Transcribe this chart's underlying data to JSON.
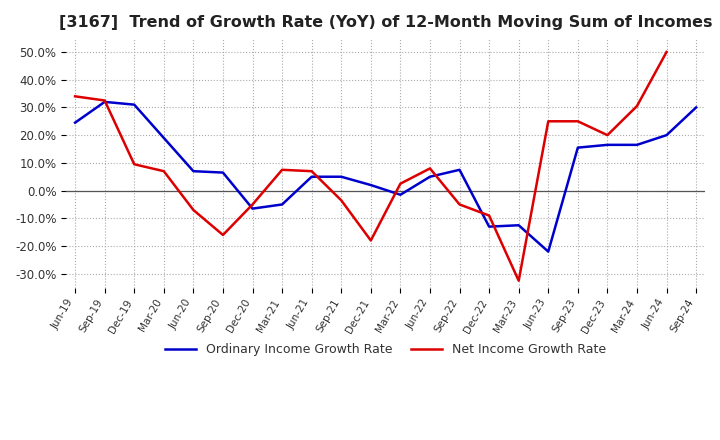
{
  "title": "[3167]  Trend of Growth Rate (YoY) of 12-Month Moving Sum of Incomes",
  "title_fontsize": 11.5,
  "ylim": [
    -35,
    55
  ],
  "yticks": [
    -30,
    -20,
    -10,
    0,
    10,
    20,
    30,
    40,
    50
  ],
  "background_color": "#ffffff",
  "grid_color": "#aaaaaa",
  "zero_line_color": "#555555",
  "ordinary_income_color": "#0000cc",
  "net_income_color": "#dd0000",
  "legend_labels": [
    "Ordinary Income Growth Rate",
    "Net Income Growth Rate"
  ],
  "x_labels": [
    "Jun-19",
    "Sep-19",
    "Dec-19",
    "Mar-20",
    "Jun-20",
    "Sep-20",
    "Dec-20",
    "Mar-21",
    "Jun-21",
    "Sep-21",
    "Dec-21",
    "Mar-22",
    "Jun-22",
    "Sep-22",
    "Dec-22",
    "Mar-23",
    "Jun-23",
    "Sep-23",
    "Dec-23",
    "Mar-24",
    "Jun-24",
    "Sep-24"
  ],
  "ordinary_income": [
    24.5,
    32.0,
    31.0,
    19.0,
    7.0,
    6.5,
    -6.5,
    -5.0,
    5.0,
    5.0,
    2.0,
    -1.5,
    5.0,
    7.5,
    -13.0,
    -12.5,
    -22.0,
    15.5,
    16.5,
    16.5,
    20.0,
    30.0
  ],
  "net_income": [
    34.0,
    32.5,
    9.5,
    7.0,
    -7.0,
    -16.0,
    -5.0,
    7.5,
    7.0,
    -3.5,
    -18.0,
    2.5,
    8.0,
    -5.0,
    -9.0,
    -32.5,
    25.0,
    25.0,
    20.0,
    30.5,
    50.0,
    null
  ]
}
